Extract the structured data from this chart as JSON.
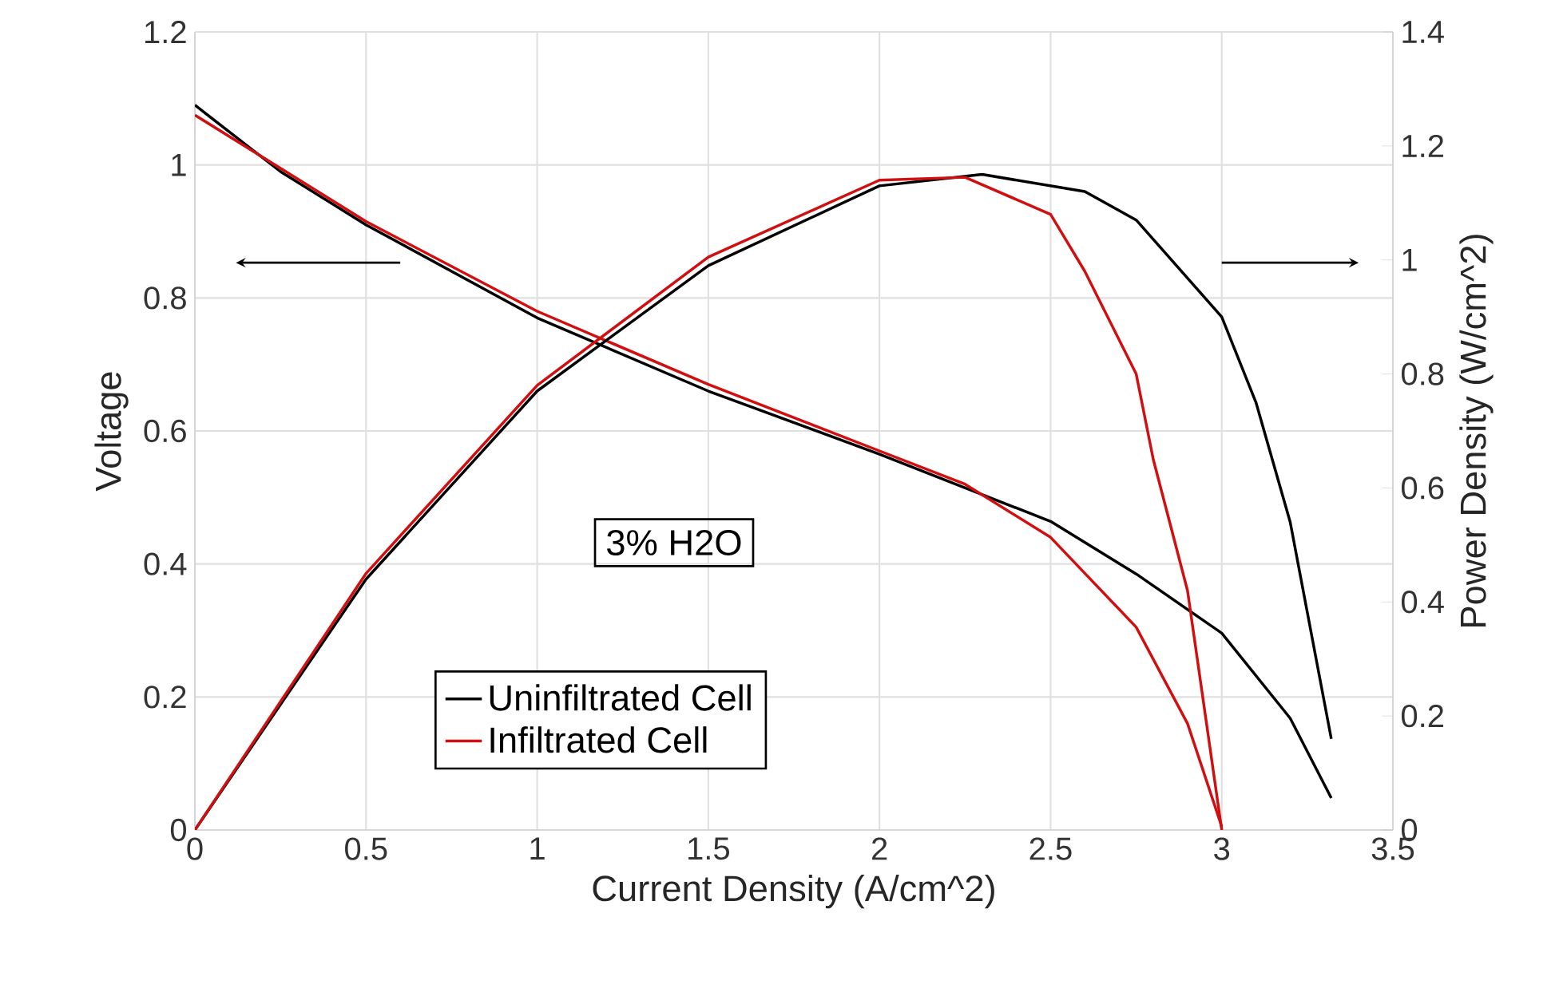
{
  "chart_data": {
    "type": "line",
    "xlabel": "Current Density (A/cm^2)",
    "ylabel": "Voltage",
    "y2label": "Power Density (W/cm^2)",
    "annotations": [
      "3% H2O"
    ],
    "xlim": [
      0,
      3.5
    ],
    "xticks": [
      0,
      0.5,
      1,
      1.5,
      2,
      2.5,
      3,
      3.5
    ],
    "ylim": [
      0,
      1.2
    ],
    "yticks": [
      0,
      0.2,
      0.4,
      0.6,
      0.8,
      1,
      1.2
    ],
    "y2lim": [
      0,
      1.4
    ],
    "y2ticks": [
      0,
      0.2,
      0.4,
      0.6,
      0.8,
      1,
      1.2,
      1.4
    ],
    "grid": true,
    "legend": "bottom",
    "marker": "none",
    "line_style": "solid",
    "series": [
      {
        "name": "Uninfiltrated Cell",
        "color": "#000000",
        "x": [
          0,
          0.25,
          0.5,
          1.0,
          1.5,
          2.0,
          2.5,
          2.75,
          3.0,
          3.2,
          3.32
        ],
        "values": [
          1.09,
          0.99,
          0.91,
          0.77,
          0.66,
          0.565,
          0.464,
          0.385,
          0.296,
          0.168,
          0.048
        ]
      },
      {
        "name": "Infiltrated Cell",
        "color": "#d01010",
        "x": [
          0,
          0.5,
          1.0,
          1.5,
          2.0,
          2.25,
          2.5,
          2.75,
          2.9,
          3.0
        ],
        "values": [
          1.075,
          0.915,
          0.78,
          0.67,
          0.57,
          0.52,
          0.44,
          0.305,
          0.16,
          0.005
        ]
      },
      {
        "color": "#000000",
        "axis": "y2",
        "x": [
          0,
          0.5,
          1.0,
          1.5,
          2.0,
          2.3,
          2.5,
          2.6,
          2.75,
          3.0,
          3.1,
          3.2,
          3.32
        ],
        "values": [
          0,
          0.44,
          0.77,
          0.99,
          1.13,
          1.15,
          1.13,
          1.12,
          1.07,
          0.9,
          0.75,
          0.54,
          0.16
        ]
      },
      {
        "color": "#d01010",
        "axis": "y2",
        "x": [
          0,
          0.5,
          1.0,
          1.5,
          2.0,
          2.25,
          2.5,
          2.6,
          2.75,
          2.8,
          2.9,
          3.0
        ],
        "values": [
          0,
          0.45,
          0.78,
          1.005,
          1.14,
          1.145,
          1.08,
          0.98,
          0.8,
          0.65,
          0.42,
          0
        ]
      }
    ]
  }
}
